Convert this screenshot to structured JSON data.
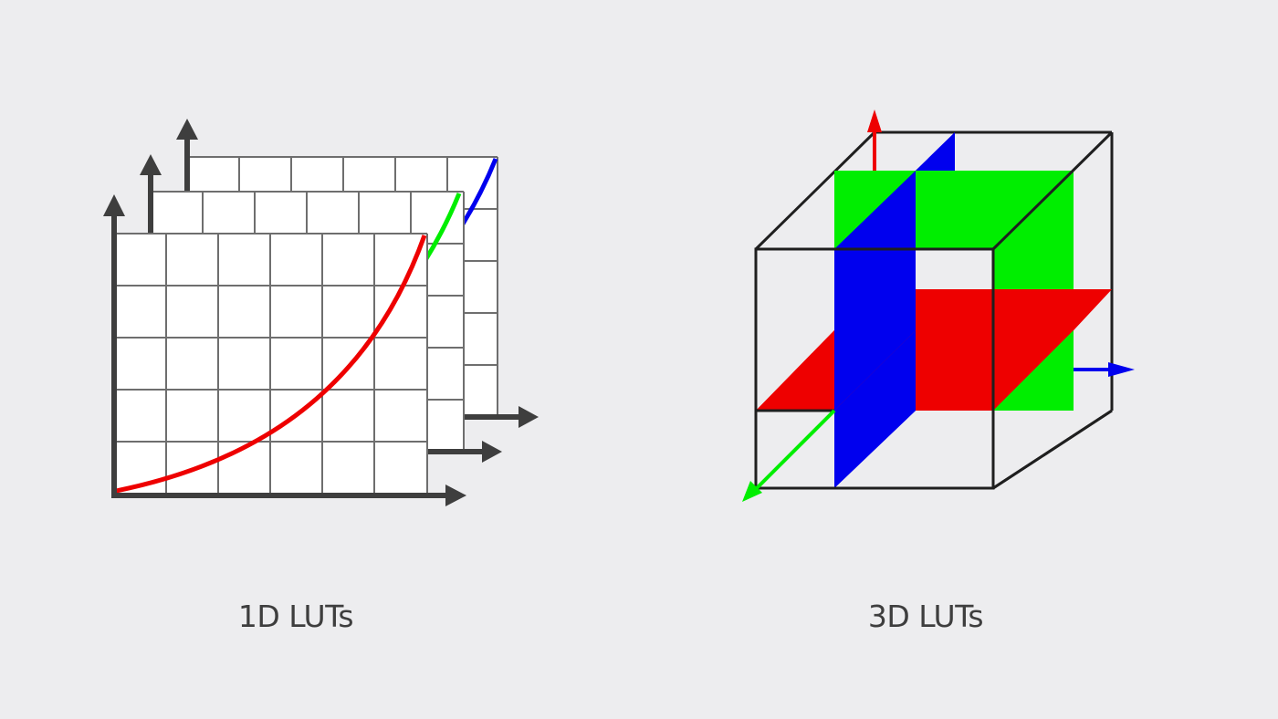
{
  "captions": {
    "lut_1d": "1D LUTs",
    "lut_3d": "3D LUTs"
  },
  "colors": {
    "background": "#EDEDEF",
    "grid": "#6E6E6E",
    "axis": "#3E3E3E",
    "red": "#EE0000",
    "green": "#00EE00",
    "blue": "#0000EE",
    "cube_edge": "#1F1F1F",
    "caption": "#3E3E3E"
  },
  "diagrams": [
    {
      "id": "lut-1d",
      "description_keys": [
        "red-curve",
        "green-curve",
        "blue-curve"
      ]
    },
    {
      "id": "lut-3d",
      "description_keys": [
        "red-plane",
        "green-plane",
        "blue-plane"
      ]
    }
  ]
}
